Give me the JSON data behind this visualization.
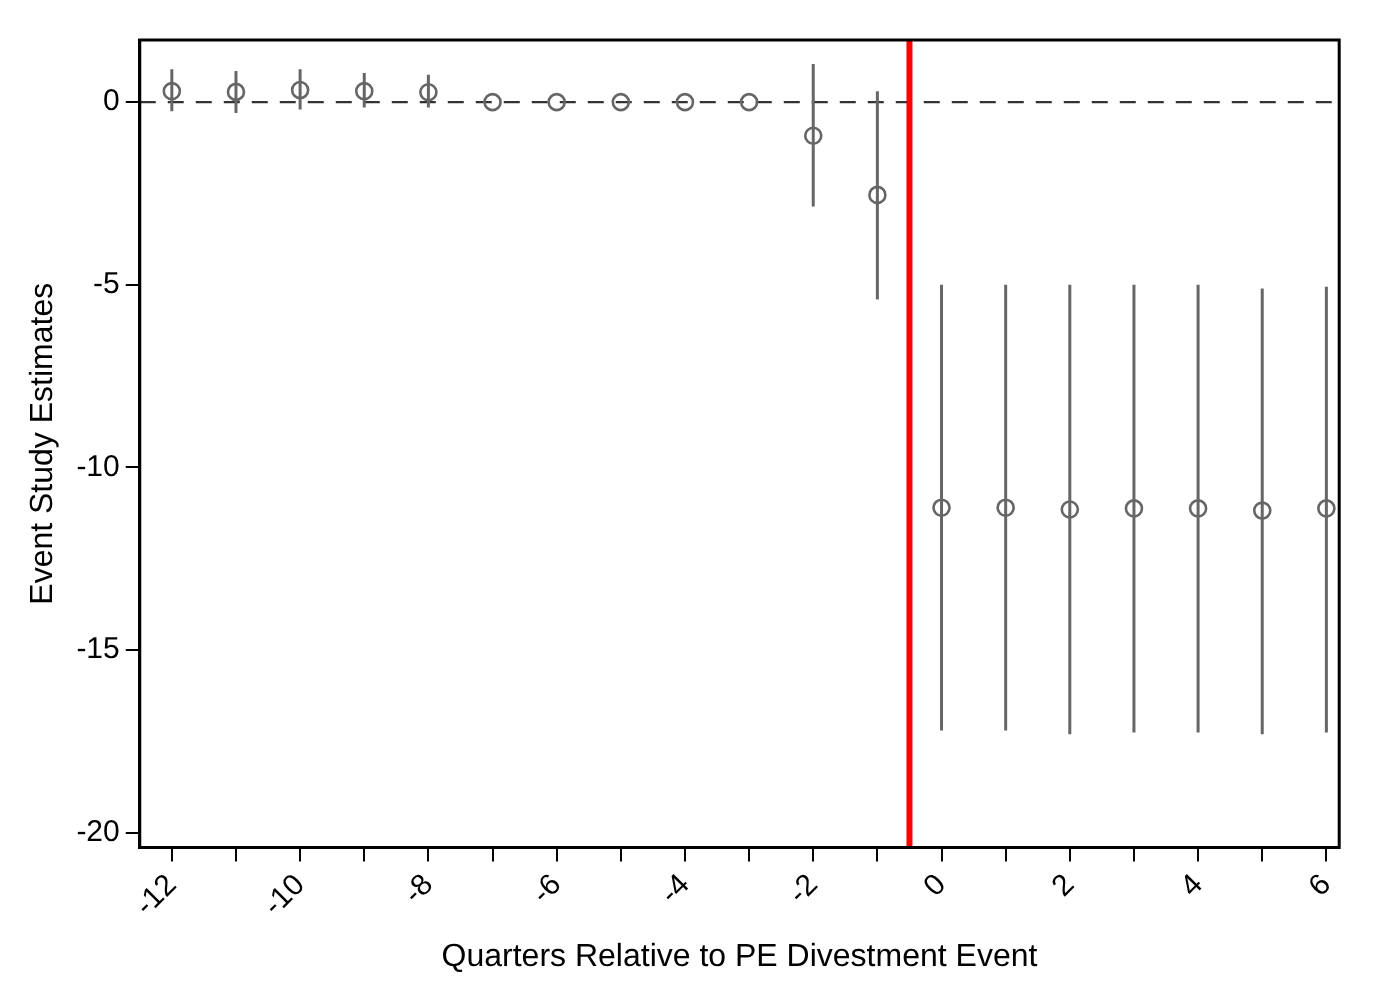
{
  "chart_data": {
    "type": "scatter",
    "xlabel": "Quarters Relative to PE Divestment Event",
    "ylabel": "Event Study Estimates",
    "x": [
      -12,
      -11,
      -10,
      -9,
      -8,
      -7,
      -6,
      -5,
      -4,
      -3,
      -2,
      -1,
      0,
      1,
      2,
      3,
      4,
      5,
      6
    ],
    "series": [
      {
        "color": "#666666",
        "values": [
          0.3,
          0.28,
          0.33,
          0.3,
          0.27,
          0,
          0,
          0,
          0,
          0,
          -0.92,
          -2.54,
          -11.1,
          -11.1,
          -11.15,
          -11.12,
          -11.12,
          -11.18,
          -11.12
        ],
        "errors": [
          [
            -0.25,
            0.9
          ],
          [
            -0.3,
            0.85
          ],
          [
            -0.2,
            0.9
          ],
          [
            -0.15,
            0.8
          ],
          [
            -0.15,
            0.75
          ],
          null,
          null,
          null,
          null,
          null,
          [
            -2.86,
            1.04
          ],
          [
            -5.4,
            0.3
          ],
          [
            -17.2,
            -5
          ],
          [
            -17.2,
            -5
          ],
          [
            -17.3,
            -5
          ],
          [
            -17.25,
            -5
          ],
          [
            -17.25,
            -5
          ],
          [
            -17.3,
            -5.1
          ],
          [
            -17.25,
            -5.05
          ]
        ]
      }
    ],
    "marker": "circle",
    "grid": false,
    "legend": false,
    "xlim": [
      -12.5,
      6.2
    ],
    "ylim": [
      -20.4,
      1.7
    ],
    "xticks": [
      -12,
      {
        "value": -11,
        "label": null
      },
      -10,
      {
        "value": -9,
        "label": null
      },
      -8,
      {
        "value": -7,
        "label": null
      },
      -6,
      {
        "value": -5,
        "label": null
      },
      -4,
      {
        "value": -3,
        "label": null
      },
      -2,
      {
        "value": -1,
        "label": null
      },
      0,
      {
        "value": 1,
        "label": null
      },
      2,
      {
        "value": 3,
        "label": null
      },
      4,
      {
        "value": 5,
        "label": null
      },
      6
    ],
    "yticks": [
      -20,
      -15,
      -10,
      -5,
      0
    ],
    "ref_lines": [
      {
        "axis": "y",
        "value": 0,
        "color": "#333333",
        "line_style": "dashed"
      },
      {
        "axis": "x",
        "value": -0.5,
        "color": "#ff0000",
        "line_style": "solid"
      }
    ]
  }
}
